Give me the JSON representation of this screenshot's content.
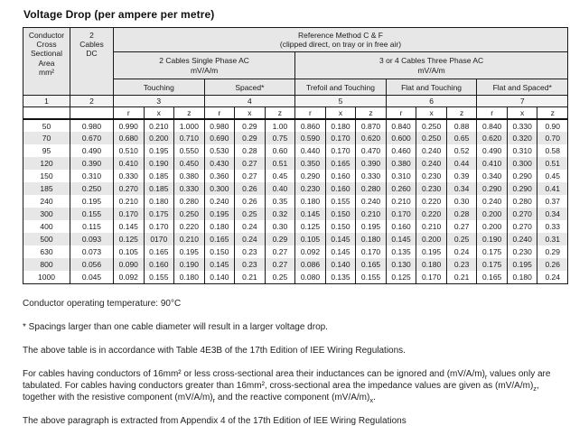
{
  "page": {
    "title": "Voltage Drop (per ampere per metre)"
  },
  "table": {
    "header": {
      "conductor_area": "Conductor\nCross\nSectional\nArea\nmm²",
      "dc_cables": "2\nCables\nDC",
      "reference_method": "Reference Method C & F\n(clipped direct, on tray or in free air)",
      "single_phase": "2 Cables Single Phase AC\nmV/A/m",
      "three_phase": "3 or 4 Cables Three Phase AC\nmV/A/m",
      "groups": [
        "Touching",
        "Spaced*",
        "Trefoil and Touching",
        "Flat and Touching",
        "Flat and Spaced*"
      ],
      "column_numbers": [
        "1",
        "2",
        "3",
        "4",
        "5",
        "6",
        "7"
      ],
      "rxz": [
        "r",
        "x",
        "z"
      ]
    },
    "rows": [
      [
        "50",
        "0.980",
        "0.990",
        "0.210",
        "1.000",
        "0.980",
        "0.29",
        "1.00",
        "0.860",
        "0.180",
        "0.870",
        "0.840",
        "0.250",
        "0.88",
        "0.840",
        "0.330",
        "0.90"
      ],
      [
        "70",
        "0.670",
        "0.680",
        "0.200",
        "0.710",
        "0.690",
        "0.29",
        "0.75",
        "0.590",
        "0.170",
        "0.620",
        "0.600",
        "0.250",
        "0.65",
        "0.620",
        "0.320",
        "0.70"
      ],
      [
        "95",
        "0.490",
        "0.510",
        "0.195",
        "0.550",
        "0.530",
        "0.28",
        "0.60",
        "0.440",
        "0.170",
        "0.470",
        "0.460",
        "0.240",
        "0.52",
        "0.490",
        "0.310",
        "0.58"
      ],
      [
        "120",
        "0.390",
        "0.410",
        "0.190",
        "0.450",
        "0.430",
        "0.27",
        "0.51",
        "0.350",
        "0.165",
        "0.390",
        "0.380",
        "0.240",
        "0.44",
        "0.410",
        "0.300",
        "0.51"
      ],
      [
        "150",
        "0.310",
        "0.330",
        "0.185",
        "0.380",
        "0.360",
        "0.27",
        "0.45",
        "0.290",
        "0.160",
        "0.330",
        "0.310",
        "0.230",
        "0.39",
        "0.340",
        "0.290",
        "0.45"
      ],
      [
        "185",
        "0.250",
        "0.270",
        "0.185",
        "0.330",
        "0.300",
        "0.26",
        "0.40",
        "0.230",
        "0.160",
        "0.280",
        "0.260",
        "0.230",
        "0.34",
        "0.290",
        "0.290",
        "0.41"
      ],
      [
        "240",
        "0.195",
        "0.210",
        "0.180",
        "0.280",
        "0.240",
        "0.26",
        "0.35",
        "0.180",
        "0.155",
        "0.240",
        "0.210",
        "0.220",
        "0.30",
        "0.240",
        "0.280",
        "0.37"
      ],
      [
        "300",
        "0.155",
        "0.170",
        "0.175",
        "0.250",
        "0.195",
        "0.25",
        "0.32",
        "0.145",
        "0.150",
        "0.210",
        "0.170",
        "0.220",
        "0.28",
        "0.200",
        "0.270",
        "0.34"
      ],
      [
        "400",
        "0.115",
        "0.145",
        "0.170",
        "0.220",
        "0.180",
        "0.24",
        "0.30",
        "0.125",
        "0.150",
        "0.195",
        "0.160",
        "0.210",
        "0.27",
        "0.200",
        "0.270",
        "0.33"
      ],
      [
        "500",
        "0.093",
        "0.125",
        "0170",
        "0.210",
        "0.165",
        "0.24",
        "0.29",
        "0.105",
        "0.145",
        "0.180",
        "0.145",
        "0.200",
        "0.25",
        "0.190",
        "0.240",
        "0.31"
      ],
      [
        "630",
        "0.073",
        "0.105",
        "0.165",
        "0.195",
        "0.150",
        "0.23",
        "0.27",
        "0.092",
        "0.145",
        "0.170",
        "0.135",
        "0.195",
        "0.24",
        "0.175",
        "0.230",
        "0.29"
      ],
      [
        "800",
        "0.056",
        "0.090",
        "0.160",
        "0.190",
        "0.145",
        "0.23",
        "0.27",
        "0.086",
        "0.140",
        "0.165",
        "0.130",
        "0.180",
        "0.23",
        "0.175",
        "0.195",
        "0.26"
      ],
      [
        "1000",
        "0.045",
        "0.092",
        "0.155",
        "0.180",
        "0.140",
        "0.21",
        "0.25",
        "0.080",
        "0.135",
        "0.155",
        "0.125",
        "0.170",
        "0.21",
        "0.165",
        "0.180",
        "0.24"
      ]
    ]
  },
  "notes": {
    "operating_temperature": "Conductor operating temperature: 90°C",
    "spacing_note": "* Spacings larger than one cable diameter will result in a larger voltage drop.",
    "accordance_note": "The above table is in accordance with Table 4E3B of the 17th Edition of IEE Wiring Regulations.",
    "impedance_note_segments": [
      {
        "t": "For cables having conductors of 16mm² or less cross-sectional area their inductances can be ignored and (mV/A/m)"
      },
      {
        "t": "r",
        "sub": true
      },
      {
        "t": " values only are tabulated. For cables having conductors greater than 16mm², cross-sectional area the impedance values are given as (mV/A/m)"
      },
      {
        "t": "z",
        "sub": true
      },
      {
        "t": ", together with the resistive component (mV/A/m)"
      },
      {
        "t": "r",
        "sub": true
      },
      {
        "t": " and the reactive component (mV/A/m)"
      },
      {
        "t": "x",
        "sub": true
      },
      {
        "t": "."
      }
    ],
    "extract_note": "The above paragraph is extracted from Appendix 4 of the 17th Edition of IEE Wiring Regulations"
  }
}
